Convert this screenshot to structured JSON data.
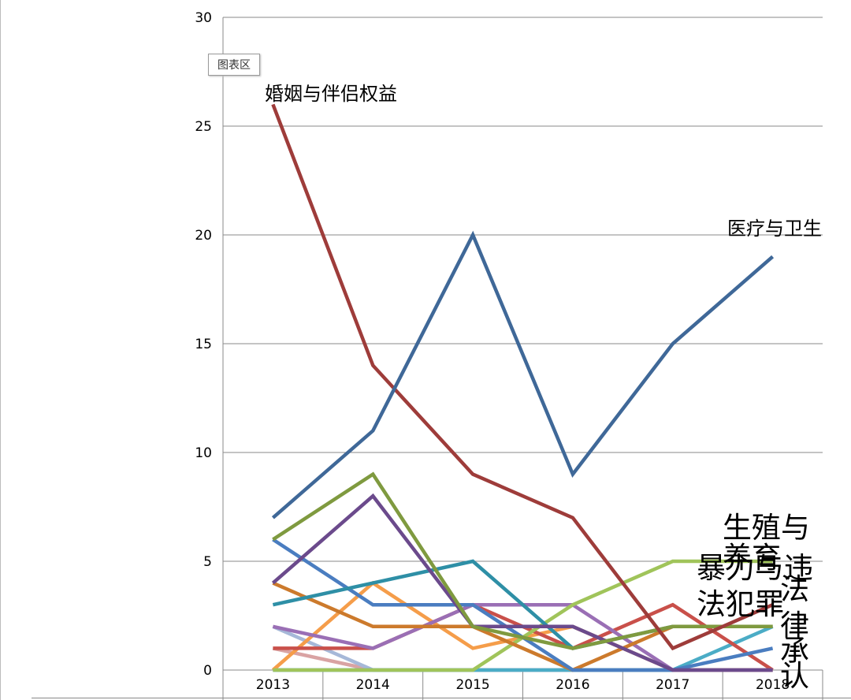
{
  "chart_area_label": "图表区",
  "chart_data": {
    "type": "line",
    "title": "",
    "xlabel": "",
    "ylabel": "",
    "categories": [
      "2013",
      "2014",
      "2015",
      "2016",
      "2017",
      "2018"
    ],
    "ylim": [
      0,
      30
    ],
    "yticks": [
      0,
      5,
      10,
      15,
      20,
      25,
      30
    ],
    "grid": true,
    "legend": "none",
    "series": [
      {
        "name": "医疗与卫生",
        "color": "#3f6898",
        "values": [
          7,
          11,
          20,
          9,
          15,
          19
        ]
      },
      {
        "name": "婚姻与伴侣权益",
        "color": "#9e3c3a",
        "values": [
          26,
          14,
          9,
          7,
          1,
          3
        ]
      },
      {
        "name": "生殖与养育",
        "color": "#7f9a3f",
        "values": [
          6,
          9,
          2,
          1,
          2,
          2
        ]
      },
      {
        "name": "",
        "color": "#6b4a8c",
        "values": [
          4,
          8,
          2,
          2,
          0,
          0
        ]
      },
      {
        "name": "",
        "color": "#2e8fa6",
        "values": [
          3,
          4,
          5,
          1,
          2,
          2
        ]
      },
      {
        "name": "",
        "color": "#4a7dc0",
        "values": [
          6,
          3,
          3,
          0,
          0,
          1
        ]
      },
      {
        "name": "",
        "color": "#cc7a2c",
        "values": [
          4,
          2,
          2,
          0,
          2,
          2
        ]
      },
      {
        "name": "暴力与违法犯罪",
        "color": "#a0c45a",
        "values": [
          0,
          0,
          0,
          3,
          5,
          5
        ]
      },
      {
        "name": "",
        "color": "#9a6fb5",
        "values": [
          2,
          1,
          3,
          3,
          0,
          0
        ]
      },
      {
        "name": "",
        "color": "#c9504a",
        "values": [
          1,
          1,
          3,
          1,
          3,
          0
        ]
      },
      {
        "name": "",
        "color": "#f59d4a",
        "values": [
          0,
          4,
          1,
          2,
          0,
          0
        ]
      },
      {
        "name": "法律",
        "color": "#4bacc6",
        "values": [
          0,
          0,
          0,
          0,
          0,
          2
        ]
      },
      {
        "name": "",
        "color": "#a6b8d8",
        "values": [
          2,
          0,
          0,
          0,
          0,
          0
        ]
      },
      {
        "name": "",
        "color": "#d9a3a3",
        "values": [
          1,
          0,
          0,
          0,
          0,
          0
        ]
      },
      {
        "name": "",
        "color": "#8fb8d8",
        "values": [
          0,
          0,
          0,
          0,
          0,
          0
        ]
      }
    ],
    "annotations": [
      {
        "text": "婚姻与伴侣权益",
        "series": 1,
        "at": "2013"
      },
      {
        "text": "医疗与卫生",
        "series": 0,
        "at": "2018"
      },
      {
        "text": "生殖与",
        "series": 2,
        "at": "2018"
      },
      {
        "text": "养育",
        "series": 2,
        "at": "2018"
      },
      {
        "text": "暴力与违",
        "series": 7,
        "at": "2018"
      },
      {
        "text": "法犯罪",
        "series": 7,
        "at": "2018"
      },
      {
        "text": "法",
        "series": 11,
        "at": "2018"
      },
      {
        "text": "律",
        "series": 11,
        "at": "2018"
      },
      {
        "text": "承",
        "series": 11,
        "at": "2018"
      },
      {
        "text": "认",
        "series": 11,
        "at": "2018"
      }
    ]
  }
}
